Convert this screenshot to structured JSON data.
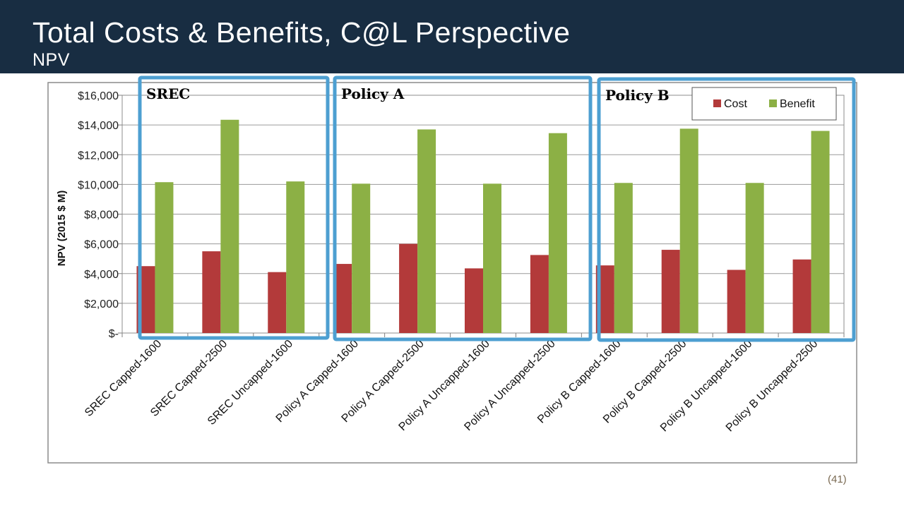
{
  "slide": {
    "title": "Total Costs & Benefits, C@L Perspective",
    "subtitle": "NPV",
    "page_number": "(41)"
  },
  "colors": {
    "header_bg": "#182d42",
    "cost": "#b33a3a",
    "benefit": "#8cb045",
    "group_box": "#4d9fd1"
  },
  "chart_data": {
    "type": "bar",
    "title": "",
    "xlabel": "",
    "ylabel": "NPV (2015 $ M)",
    "ylim": [
      0,
      16000
    ],
    "yticks": [
      0,
      2000,
      4000,
      6000,
      8000,
      10000,
      12000,
      14000,
      16000
    ],
    "ytick_labels": [
      "$-",
      "$2,000",
      "$4,000",
      "$6,000",
      "$8,000",
      "$10,000",
      "$12,000",
      "$14,000",
      "$16,000"
    ],
    "grid": true,
    "legend_position": "top-right",
    "categories": [
      "SREC Capped-1600",
      "SREC Capped-2500",
      "SREC Uncapped-1600",
      "Policy A Capped-1600",
      "Policy A Capped-2500",
      "Policy A Uncapped-1600",
      "Policy A Uncapped-2500",
      "Policy B Capped-1600",
      "Policy B Capped-2500",
      "Policy B Uncapped-1600",
      "Policy B Uncapped-2500"
    ],
    "series": [
      {
        "name": "Cost",
        "values": [
          4500,
          5500,
          4100,
          4650,
          6000,
          4350,
          5250,
          4550,
          5600,
          4250,
          4950
        ]
      },
      {
        "name": "Benefit",
        "values": [
          10150,
          14350,
          10200,
          10050,
          13700,
          10050,
          13450,
          10100,
          13750,
          10100,
          13600
        ]
      }
    ],
    "annotations": [
      {
        "label": "SREC",
        "categories": [
          0,
          2
        ]
      },
      {
        "label": "Policy A",
        "categories": [
          3,
          6
        ]
      },
      {
        "label": "Policy B",
        "categories": [
          7,
          10
        ]
      }
    ]
  }
}
